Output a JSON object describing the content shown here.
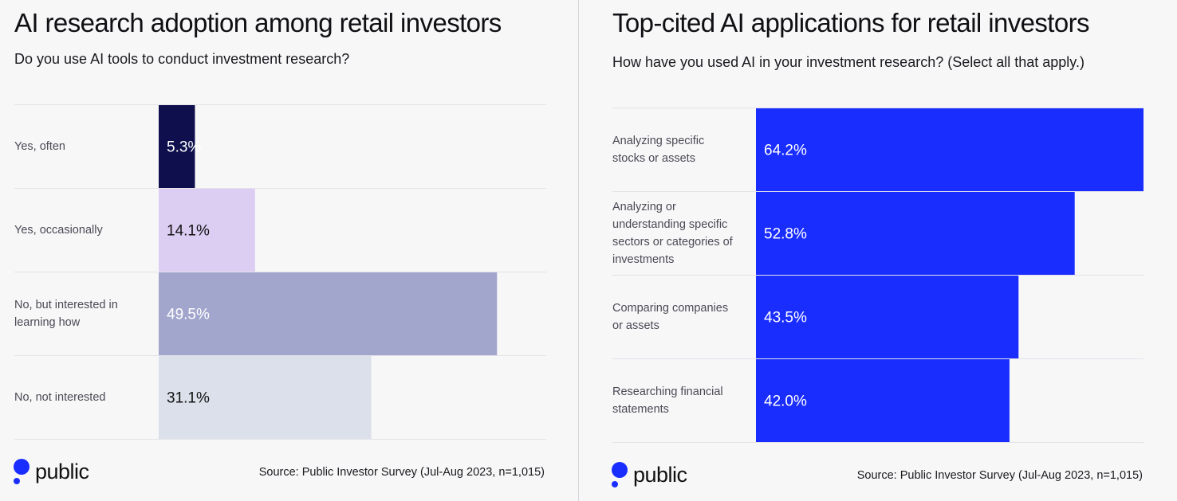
{
  "brand": {
    "name": "public",
    "color": "#1a2dff"
  },
  "left": {
    "title": "AI research adoption among retail investors",
    "subtitle": "Do you use AI tools to conduct investment research?",
    "source": "Source: Public Investor Survey (Jul-Aug 2023, n=1,015)"
  },
  "right": {
    "title": "Top-cited AI applications for retail investors",
    "subtitle": "How have you used AI in your investment research? (Select all that apply.)",
    "source": "Source: Public Investor Survey (Jul-Aug 2023, n=1,015)"
  },
  "chart_data": [
    {
      "type": "bar",
      "orientation": "horizontal",
      "title": "AI research adoption among retail investors",
      "subtitle": "Do you use AI tools to conduct investment research?",
      "categories": [
        "Yes, often",
        "Yes, occasionally",
        "No, but interested in learning how",
        "No, not interested"
      ],
      "label_lines": [
        [
          "Yes, often"
        ],
        [
          "Yes, occasionally"
        ],
        [
          "No, but interested in",
          "learning how"
        ],
        [
          "No, not interested"
        ]
      ],
      "values": [
        5.3,
        14.1,
        49.5,
        31.1
      ],
      "value_labels": [
        "5.3%",
        "14.1%",
        "49.5%",
        "31.1%"
      ],
      "colors": [
        "#0f0f4d",
        "#dccdf3",
        "#a2a6cd",
        "#dbe0ea"
      ],
      "label_colors": [
        "#ffffff",
        "#111111",
        "#ffffff",
        "#111111"
      ],
      "xlim": [
        0,
        56.7
      ],
      "unit": "%"
    },
    {
      "type": "bar",
      "orientation": "horizontal",
      "title": "Top-cited AI applications for retail investors",
      "subtitle": "How have you used AI in your investment research? (Select all that apply.)",
      "categories": [
        "Analyzing specific stocks or assets",
        "Analyzing or understanding specific sectors or categories of investments",
        "Comparing companies or assets",
        "Researching financial statements"
      ],
      "label_lines": [
        [
          "Analyzing specific",
          "stocks or assets"
        ],
        [
          "Analyzing or",
          "understanding specific",
          "sectors or categories of",
          "investments"
        ],
        [
          "Comparing companies",
          "or assets"
        ],
        [
          "Researching financial",
          "statements"
        ]
      ],
      "values": [
        64.2,
        52.8,
        43.5,
        42.0
      ],
      "value_labels": [
        "64.2%",
        "52.8%",
        "43.5%",
        "42.0%"
      ],
      "colors": [
        "#1a2dff",
        "#1a2dff",
        "#1a2dff",
        "#1a2dff"
      ],
      "label_colors": [
        "#ffffff",
        "#ffffff",
        "#ffffff",
        "#ffffff"
      ],
      "xlim": [
        0,
        64.2
      ],
      "unit": "%"
    }
  ]
}
